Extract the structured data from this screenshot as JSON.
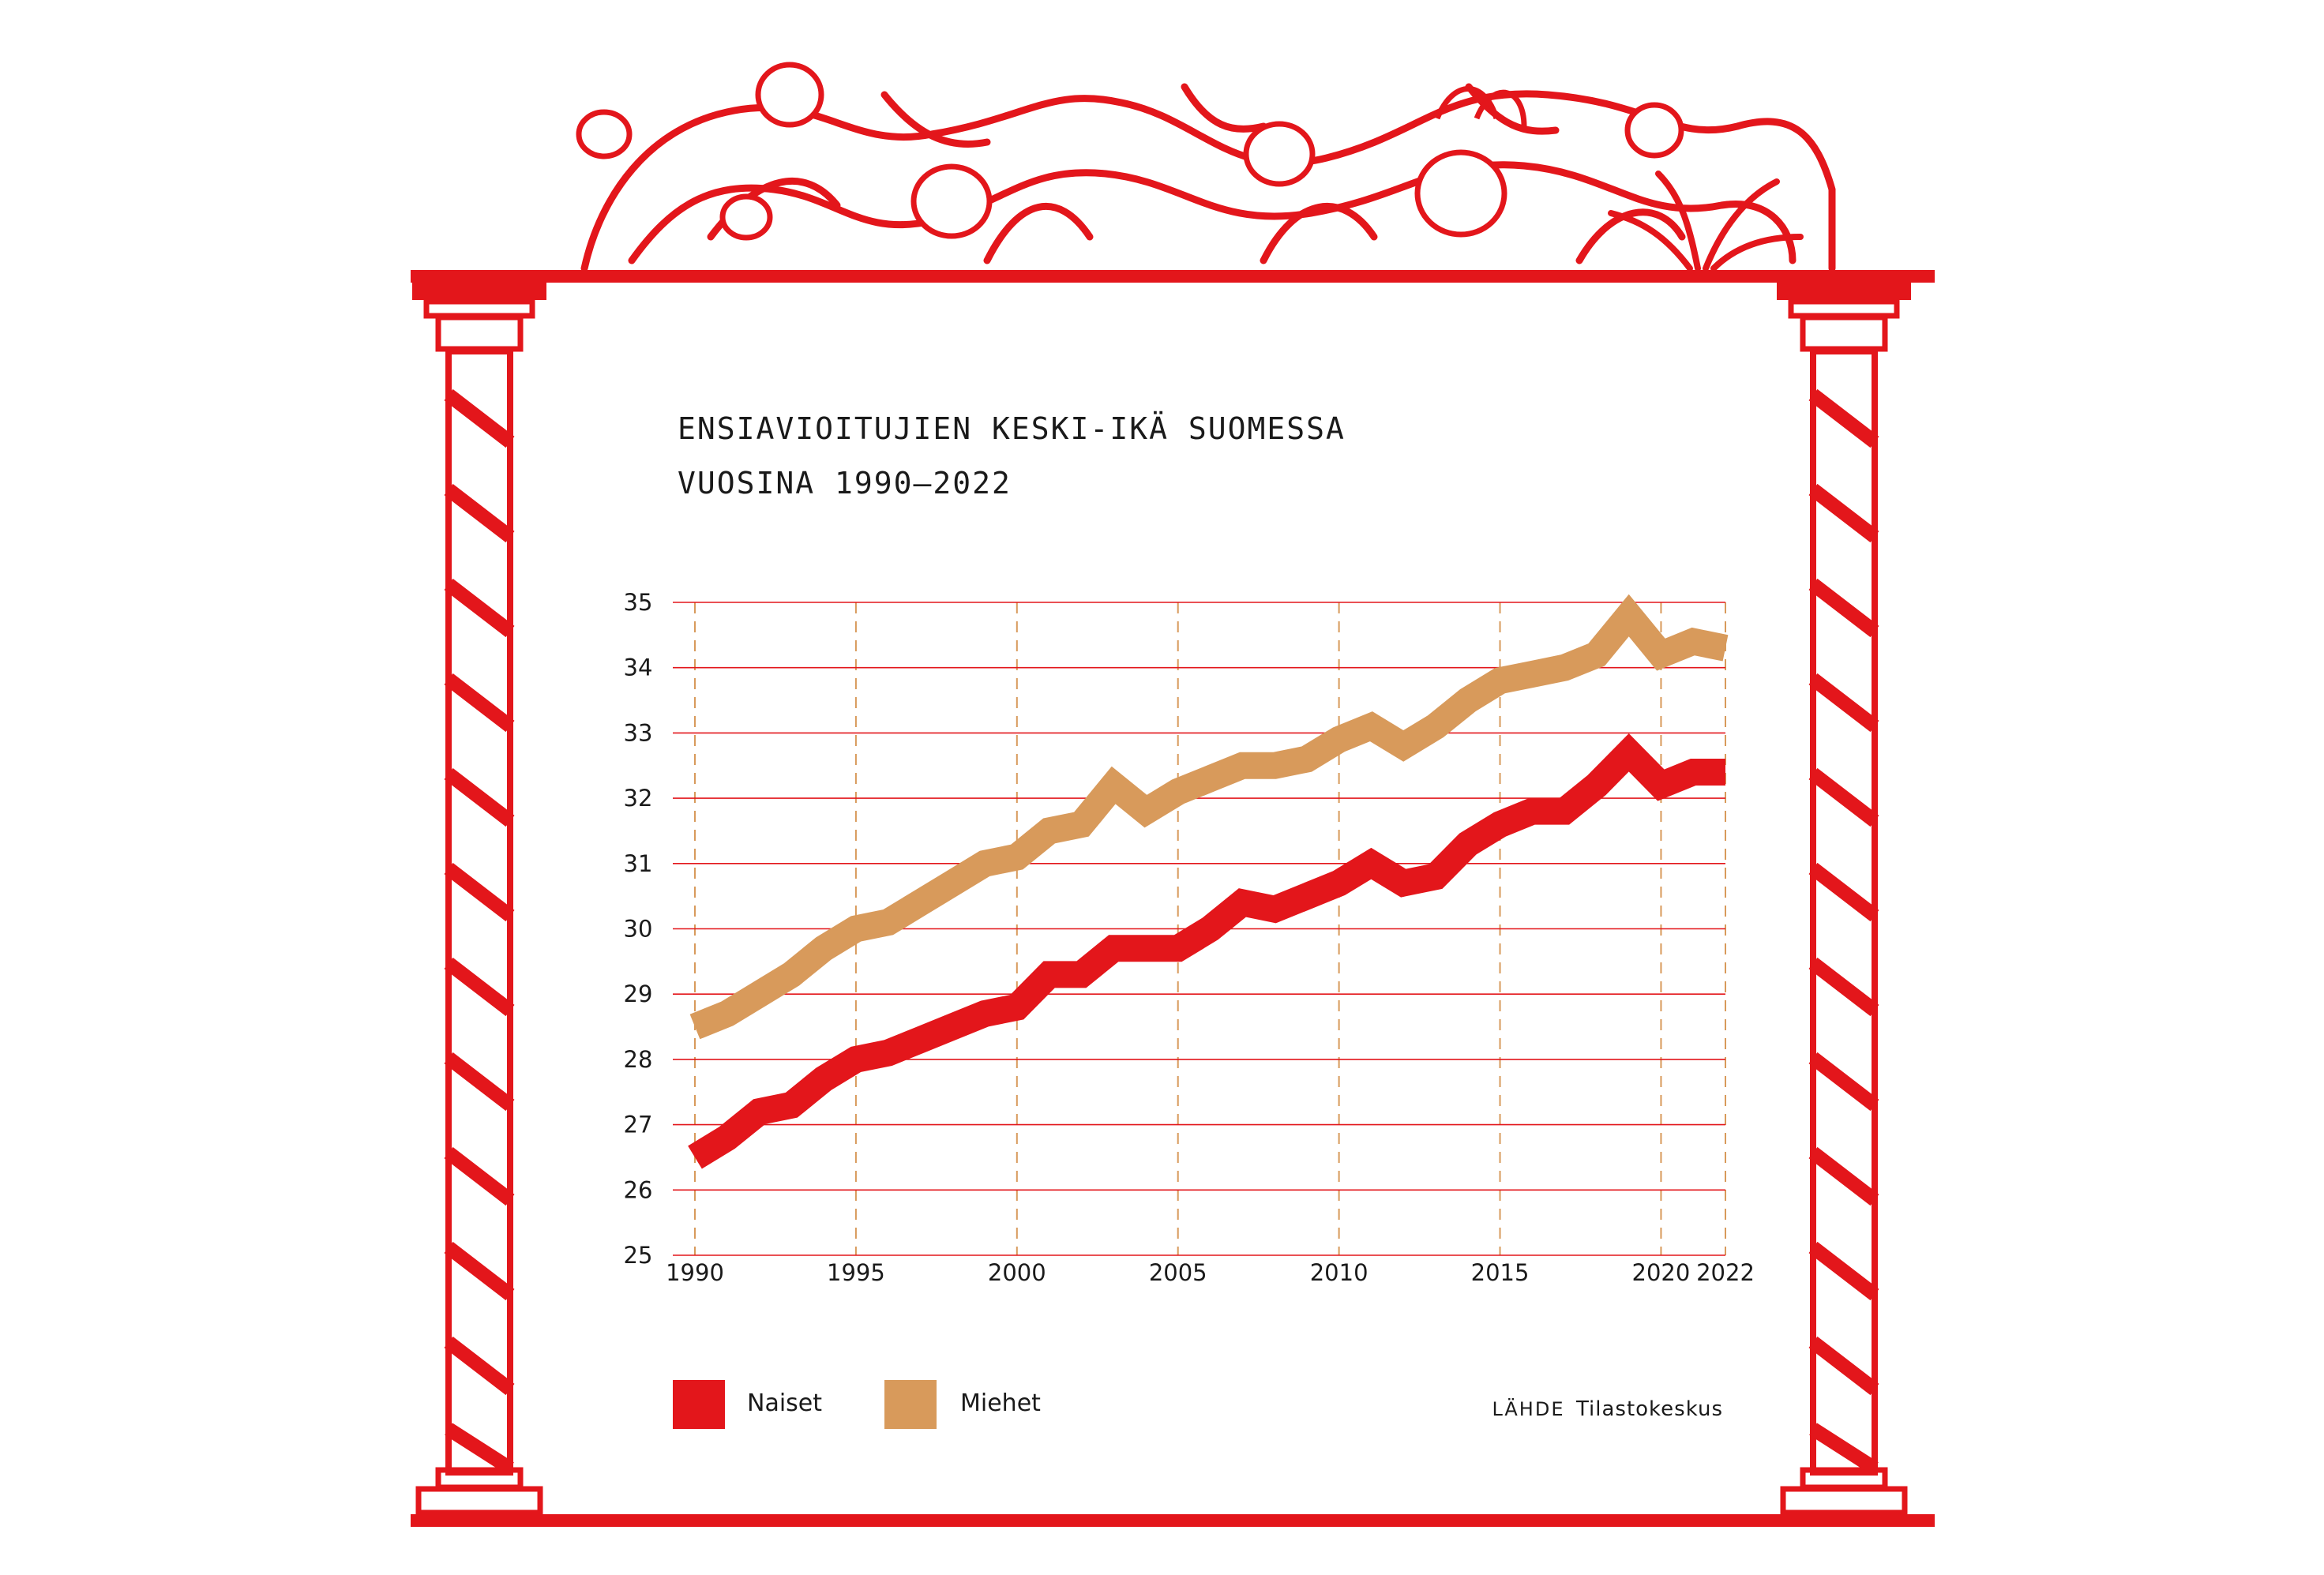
{
  "colors": {
    "frame": "#e3161b",
    "naiset": "#e3161b",
    "miehet": "#d89a5b",
    "grid_h": "#e3161b",
    "grid_v": "#d89a5b",
    "text": "#1a1a1a"
  },
  "source": {
    "label": "LÄHDE",
    "name": "Tilastokeskus"
  },
  "chart_data": {
    "type": "line",
    "title": [
      "ENSIAVIOITUJIEN KESKI-IKÄ SUOMESSA",
      "VUOSINA 1990–2022"
    ],
    "xlabel": "",
    "ylabel": "",
    "x": [
      1990,
      1991,
      1992,
      1993,
      1994,
      1995,
      1996,
      1997,
      1998,
      1999,
      2000,
      2001,
      2002,
      2003,
      2004,
      2005,
      2006,
      2007,
      2008,
      2009,
      2010,
      2011,
      2012,
      2013,
      2014,
      2015,
      2016,
      2017,
      2018,
      2019,
      2020,
      2021,
      2022
    ],
    "x_ticks": [
      1990,
      1995,
      2000,
      2005,
      2010,
      2015,
      2020,
      2022
    ],
    "y_ticks": [
      25,
      26,
      27,
      28,
      29,
      30,
      31,
      32,
      33,
      34,
      35
    ],
    "xlim": [
      1990,
      2022
    ],
    "ylim": [
      25,
      35
    ],
    "grid": true,
    "legend_position": "bottom-left",
    "series": [
      {
        "name": "Naiset",
        "color": "#e3161b",
        "values": [
          26.5,
          26.8,
          27.2,
          27.3,
          27.7,
          28.0,
          28.1,
          28.3,
          28.5,
          28.7,
          28.8,
          29.3,
          29.3,
          29.7,
          29.7,
          29.7,
          30.0,
          30.4,
          30.3,
          30.5,
          30.7,
          31.0,
          30.7,
          30.8,
          31.3,
          31.6,
          31.8,
          31.8,
          32.2,
          32.7,
          32.2,
          32.4,
          32.4
        ]
      },
      {
        "name": "Miehet",
        "color": "#d89a5b",
        "values": [
          28.5,
          28.7,
          29.0,
          29.3,
          29.7,
          30.0,
          30.1,
          30.4,
          30.7,
          31.0,
          31.1,
          31.5,
          31.6,
          32.2,
          31.8,
          32.1,
          32.3,
          32.5,
          32.5,
          32.6,
          32.9,
          33.1,
          32.8,
          33.1,
          33.5,
          33.8,
          33.9,
          34.0,
          34.2,
          34.8,
          34.2,
          34.4,
          34.3
        ]
      }
    ]
  }
}
